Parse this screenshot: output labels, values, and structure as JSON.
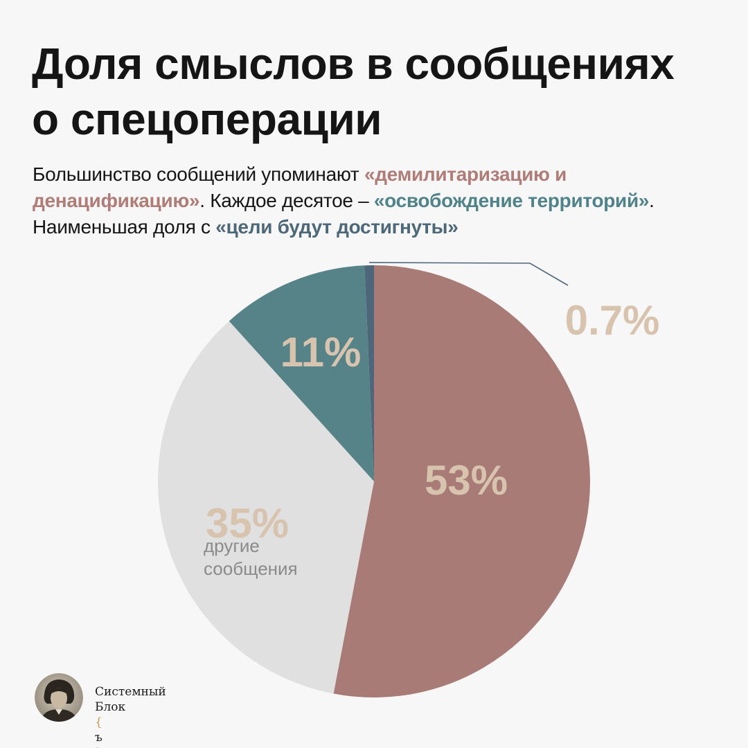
{
  "title_line1": "Доля смыслов в сообщениях",
  "title_line2": "о спецоперации",
  "subtitle": {
    "p1": "Большинство сообщений упоминают ",
    "h1": "«демилитаризацию и денацификацию»",
    "p2": ". Каждое десятое – ",
    "h2": "«освобождение территорий»",
    "p3": ". Наименьшая доля с ",
    "h3": "«цели будут достигнуты»"
  },
  "colors": {
    "demilitarization": "#a97b76",
    "liberation": "#568388",
    "goals": "#4d6679",
    "other": "#e0e0e0",
    "pct_label": "#d8c4ae",
    "other_text": "#8a8a8a",
    "leader_line": "#4d6679"
  },
  "chart_data": {
    "type": "pie",
    "start_angle_deg": 0,
    "direction": "clockwise",
    "slices": [
      {
        "key": "demilitarization",
        "value": 53.0,
        "label": "53%",
        "sublabel": ""
      },
      {
        "key": "other",
        "value": 35.3,
        "label": "35%",
        "sublabel": "другие сообщения"
      },
      {
        "key": "liberation",
        "value": 11.0,
        "label": "11%",
        "sublabel": ""
      },
      {
        "key": "goals",
        "value": 0.7,
        "label": "0.7%",
        "sublabel": ""
      }
    ]
  },
  "logo": {
    "line1": "Системный",
    "line2_main": "Блок",
    "line2_open": "{",
    "line2_mid": "ъ",
    "line2_close": "}",
    "avatar_icon": "portrait-avatar-icon"
  }
}
